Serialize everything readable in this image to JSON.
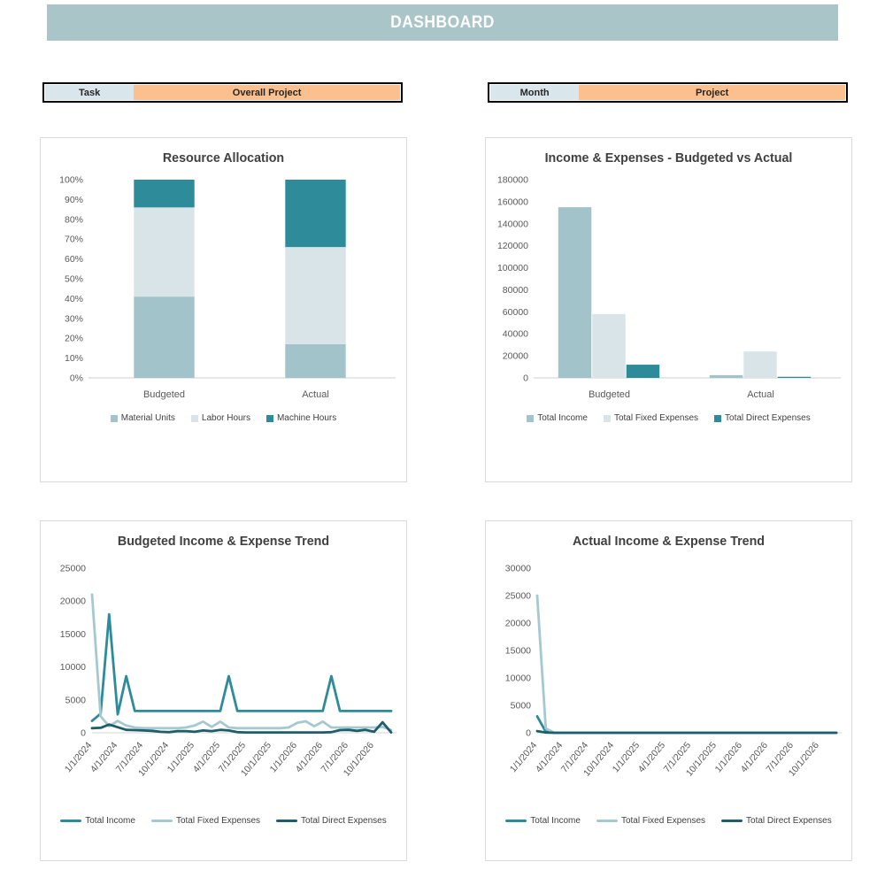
{
  "header": {
    "title": "DASHBOARD",
    "bg_color": "#a9c5c8",
    "text_color": "#ffffff"
  },
  "slicers": [
    {
      "cells": [
        {
          "label": "Task",
          "color": "#d9e7ec"
        },
        {
          "label": "Overall Project",
          "color": "#fbc08d"
        }
      ]
    },
    {
      "cells": [
        {
          "label": "Month",
          "color": "#d9e7ec"
        },
        {
          "label": "Project",
          "color": "#fbc08d"
        }
      ]
    }
  ],
  "palette": {
    "header_bg": "#a9c5c8",
    "slicer_blue": "#d9e7ec",
    "slicer_orange": "#fbc08d",
    "bar_medium_teal": "#a2c3ca",
    "bar_light_gray_blue": "#d8e4e8",
    "bar_dark_teal": "#2e8b9a",
    "line_teal": "#2e8b9a",
    "line_light_blue": "#a5c9d1",
    "line_dark_teal": "#1e5e69",
    "title_text": "#404040",
    "axis_text": "#595959",
    "card_border": "#d9d9d9"
  },
  "chart_data": [
    {
      "id": "resource-allocation",
      "type": "bar",
      "stacked": true,
      "title": "Resource Allocation",
      "categories": [
        "Budgeted",
        "Actual"
      ],
      "series": [
        {
          "name": "Material Units",
          "color": "#a2c3ca",
          "values": [
            41,
            17
          ]
        },
        {
          "name": "Labor Hours",
          "color": "#d8e4e8",
          "values": [
            45,
            49
          ]
        },
        {
          "name": "Machine Hours",
          "color": "#2e8b9a",
          "values": [
            14,
            34
          ]
        }
      ],
      "ylim": [
        0,
        100
      ],
      "ystep": 10,
      "ytick_suffix": "%",
      "legend_marker": "square",
      "grid": false,
      "legend_position": "bottom"
    },
    {
      "id": "income-expenses-budget-vs-actual",
      "type": "bar",
      "stacked": false,
      "title": "Income & Expenses - Budgeted vs Actual",
      "categories": [
        "Budgeted",
        "Actual"
      ],
      "series": [
        {
          "name": "Total Income",
          "color": "#a2c3ca",
          "values": [
            155000,
            2500
          ]
        },
        {
          "name": "Total Fixed Expenses",
          "color": "#d8e4e8",
          "values": [
            58000,
            24000
          ]
        },
        {
          "name": "Total Direct Expenses",
          "color": "#2e8b9a",
          "values": [
            12000,
            1000
          ]
        }
      ],
      "ylim": [
        0,
        180000
      ],
      "ystep": 20000,
      "ytick_suffix": "",
      "legend_marker": "square",
      "grid": false,
      "legend_position": "bottom"
    },
    {
      "id": "budgeted-income-expense-trend",
      "type": "line",
      "title": "Budgeted Income & Expense Trend",
      "x": [
        "1/1/2024",
        "2/1/2024",
        "3/1/2024",
        "4/1/2024",
        "5/1/2024",
        "6/1/2024",
        "7/1/2024",
        "8/1/2024",
        "9/1/2024",
        "10/1/2024",
        "11/1/2024",
        "12/1/2024",
        "1/1/2025",
        "2/1/2025",
        "3/1/2025",
        "4/1/2025",
        "5/1/2025",
        "6/1/2025",
        "7/1/2025",
        "8/1/2025",
        "9/1/2025",
        "10/1/2025",
        "11/1/2025",
        "12/1/2025",
        "1/1/2026",
        "2/1/2026",
        "3/1/2026",
        "4/1/2026",
        "5/1/2026",
        "6/1/2026",
        "7/1/2026",
        "8/1/2026",
        "9/1/2026",
        "10/1/2026",
        "11/1/2026",
        "12/1/2026"
      ],
      "xtick_every": 3,
      "series": [
        {
          "name": "Total Income",
          "color": "#2e8b9a",
          "values": [
            1800,
            2900,
            18000,
            2800,
            8600,
            3300,
            3300,
            3300,
            3300,
            3300,
            3300,
            3300,
            3300,
            3300,
            3300,
            3300,
            8600,
            3300,
            3300,
            3300,
            3300,
            3300,
            3300,
            3300,
            3300,
            3300,
            3300,
            3300,
            8600,
            3300,
            3300,
            3300,
            3300,
            3300,
            3300,
            3300
          ]
        },
        {
          "name": "Total Fixed Expenses",
          "color": "#a5c9d1",
          "values": [
            21000,
            2500,
            1000,
            1800,
            1100,
            800,
            700,
            700,
            700,
            700,
            700,
            800,
            1100,
            1700,
            900,
            1700,
            800,
            700,
            700,
            700,
            700,
            700,
            700,
            800,
            1500,
            1750,
            1000,
            1700,
            800,
            800,
            800,
            800,
            800,
            800,
            900,
            400
          ]
        },
        {
          "name": "Total Direct Expenses",
          "color": "#1e5e69",
          "values": [
            700,
            750,
            1250,
            850,
            450,
            400,
            350,
            300,
            150,
            100,
            250,
            250,
            150,
            350,
            250,
            450,
            350,
            100,
            50,
            50,
            50,
            50,
            50,
            50,
            50,
            50,
            50,
            50,
            100,
            400,
            450,
            300,
            450,
            150,
            1600,
            50
          ]
        }
      ],
      "ylim": [
        0,
        25000
      ],
      "ystep": 5000,
      "ytick_suffix": "",
      "legend_marker": "line",
      "grid": false,
      "legend_position": "bottom"
    },
    {
      "id": "actual-income-expense-trend",
      "type": "line",
      "title": "Actual Income & Expense Trend",
      "x": [
        "1/1/2024",
        "2/1/2024",
        "3/1/2024",
        "4/1/2024",
        "5/1/2024",
        "6/1/2024",
        "7/1/2024",
        "8/1/2024",
        "9/1/2024",
        "10/1/2024",
        "11/1/2024",
        "12/1/2024",
        "1/1/2025",
        "2/1/2025",
        "3/1/2025",
        "4/1/2025",
        "5/1/2025",
        "6/1/2025",
        "7/1/2025",
        "8/1/2025",
        "9/1/2025",
        "10/1/2025",
        "11/1/2025",
        "12/1/2025",
        "1/1/2026",
        "2/1/2026",
        "3/1/2026",
        "4/1/2026",
        "5/1/2026",
        "6/1/2026",
        "7/1/2026",
        "8/1/2026",
        "9/1/2026",
        "10/1/2026",
        "11/1/2026",
        "12/1/2026"
      ],
      "xtick_every": 3,
      "series": [
        {
          "name": "Total Income",
          "color": "#2e8b9a",
          "values": [
            3000,
            200,
            0,
            0,
            0,
            0,
            0,
            0,
            0,
            0,
            0,
            0,
            0,
            0,
            0,
            0,
            0,
            0,
            0,
            0,
            0,
            0,
            0,
            0,
            0,
            0,
            0,
            0,
            0,
            0,
            0,
            0,
            0,
            0,
            0,
            0
          ]
        },
        {
          "name": "Total Fixed Expenses",
          "color": "#a5c9d1",
          "values": [
            25000,
            800,
            0,
            0,
            0,
            0,
            0,
            0,
            0,
            0,
            0,
            0,
            0,
            0,
            0,
            0,
            0,
            0,
            0,
            0,
            0,
            0,
            0,
            0,
            0,
            0,
            0,
            0,
            0,
            0,
            0,
            0,
            0,
            0,
            0,
            0
          ]
        },
        {
          "name": "Total Direct Expenses",
          "color": "#1e5e69",
          "values": [
            300,
            50,
            0,
            0,
            0,
            0,
            0,
            0,
            0,
            0,
            0,
            0,
            0,
            0,
            0,
            0,
            0,
            0,
            0,
            0,
            0,
            0,
            0,
            0,
            0,
            0,
            0,
            0,
            0,
            0,
            0,
            0,
            0,
            0,
            0,
            0
          ]
        }
      ],
      "ylim": [
        0,
        30000
      ],
      "ystep": 5000,
      "ytick_suffix": "",
      "legend_marker": "line",
      "grid": false,
      "legend_position": "bottom"
    }
  ]
}
